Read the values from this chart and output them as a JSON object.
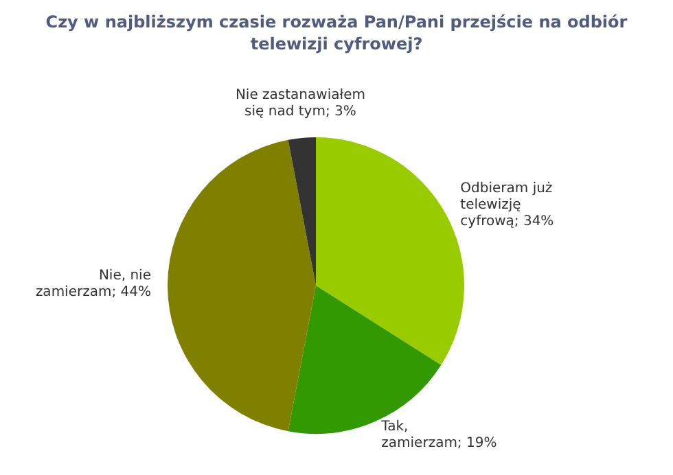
{
  "chart_data": {
    "type": "pie",
    "title": "Czy w najbliższym czasie rozważa Pan/Pani przejście na odbiór telewizji cyfrowej?",
    "categories": [
      "Odbieram już telewizję cyfrową",
      "Tak, zamierzam",
      "Nie, nie zamierzam",
      "Nie zastanawiałem się nad tym"
    ],
    "values": [
      34,
      19,
      44,
      3
    ],
    "value_labels": [
      "34%",
      "19%",
      "44%",
      "3%"
    ],
    "colors": [
      "#99cc00",
      "#339900",
      "#808000",
      "#333333"
    ],
    "legend": false
  }
}
